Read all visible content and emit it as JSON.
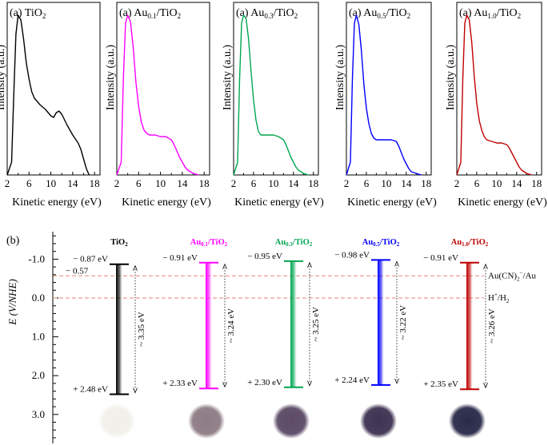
{
  "chart_data": [
    {
      "type": "line",
      "panel": "a",
      "panel_label": "(a)",
      "sample": "TiO",
      "sample_sub": "2",
      "xlabel": "Kinetic energy (eV)",
      "ylabel": "Intensity (a.u.)",
      "xlim": [
        2,
        19
      ],
      "ylim": [
        0,
        1.08
      ],
      "xticks": [
        "2",
        "6",
        "10",
        "14",
        "18"
      ],
      "color": "#000000",
      "x": [
        2.0,
        2.8,
        3.2,
        3.6,
        4.0,
        4.5,
        5.0,
        5.5,
        6.0,
        6.5,
        7.0,
        8.0,
        9.0,
        10.0,
        10.5,
        11.0,
        11.5,
        12.0,
        13.0,
        14.0,
        15.0,
        15.5,
        16.0,
        16.5,
        17.0
      ],
      "values": [
        0.0,
        0.08,
        0.5,
        0.88,
        1.0,
        0.97,
        0.85,
        0.7,
        0.6,
        0.52,
        0.48,
        0.44,
        0.41,
        0.37,
        0.36,
        0.39,
        0.4,
        0.38,
        0.31,
        0.25,
        0.2,
        0.16,
        0.1,
        0.04,
        0.0
      ]
    },
    {
      "type": "line",
      "panel": "a",
      "panel_label": "(a)",
      "sample": "Au",
      "sample_sub": "0.1",
      "sample_suffix": "/TiO",
      "sample_suffix_sub": "2",
      "xlabel": "Kinetic energy (eV)",
      "ylabel": "Intensity (a.u.)",
      "xlim": [
        2,
        19
      ],
      "ylim": [
        0,
        1.08
      ],
      "xticks": [
        "2",
        "6",
        "10",
        "14",
        "18"
      ],
      "color": "#ff00ff",
      "x": [
        2.0,
        2.8,
        3.2,
        3.6,
        4.0,
        4.5,
        5.0,
        5.5,
        6.0,
        6.5,
        7.0,
        7.5,
        8.0,
        9.0,
        10.0,
        11.0,
        12.0,
        12.5,
        13.0,
        13.5,
        14.0,
        14.5,
        15.0,
        16.0,
        17.0
      ],
      "values": [
        0.0,
        0.08,
        0.6,
        0.95,
        1.0,
        0.96,
        0.8,
        0.58,
        0.43,
        0.33,
        0.28,
        0.26,
        0.25,
        0.25,
        0.24,
        0.24,
        0.22,
        0.19,
        0.15,
        0.11,
        0.08,
        0.05,
        0.03,
        0.01,
        0.0
      ]
    },
    {
      "type": "line",
      "panel": "a",
      "panel_label": "(a)",
      "sample": "Au",
      "sample_sub": "0.3",
      "sample_suffix": "/TiO",
      "sample_suffix_sub": "2",
      "xlabel": "Kinetic energy (eV)",
      "ylabel": "Intensity (a.u.)",
      "xlim": [
        2,
        19
      ],
      "ylim": [
        0,
        1.08
      ],
      "xticks": [
        "2",
        "6",
        "10",
        "14",
        "18"
      ],
      "color": "#00a651",
      "x": [
        2.0,
        2.8,
        3.2,
        3.6,
        4.0,
        4.5,
        5.0,
        5.5,
        6.0,
        6.5,
        7.0,
        7.5,
        8.0,
        9.0,
        10.0,
        11.0,
        12.0,
        12.5,
        13.0,
        13.5,
        14.0,
        14.5,
        15.0,
        16.0,
        17.0
      ],
      "values": [
        0.0,
        0.08,
        0.6,
        0.95,
        1.0,
        0.98,
        0.85,
        0.65,
        0.47,
        0.34,
        0.27,
        0.25,
        0.25,
        0.25,
        0.25,
        0.24,
        0.22,
        0.19,
        0.15,
        0.11,
        0.08,
        0.05,
        0.03,
        0.01,
        0.0
      ]
    },
    {
      "type": "line",
      "panel": "a",
      "panel_label": "(a)",
      "sample": "Au",
      "sample_sub": "0.5",
      "sample_suffix": "/TiO",
      "sample_suffix_sub": "2",
      "xlabel": "Kinetic energy (eV)",
      "ylabel": "Intensity (a.u.)",
      "xlim": [
        2,
        19
      ],
      "ylim": [
        0,
        1.08
      ],
      "xticks": [
        "2",
        "6",
        "10",
        "14",
        "18"
      ],
      "color": "#0000ff",
      "x": [
        2.0,
        2.8,
        3.2,
        3.6,
        4.0,
        4.5,
        5.0,
        5.5,
        6.0,
        6.5,
        7.0,
        7.5,
        8.0,
        9.0,
        10.0,
        11.0,
        12.0,
        12.5,
        13.0,
        13.5,
        14.0,
        14.5,
        15.0,
        16.0,
        17.0
      ],
      "values": [
        0.0,
        0.08,
        0.6,
        0.95,
        1.0,
        0.94,
        0.78,
        0.57,
        0.42,
        0.32,
        0.26,
        0.23,
        0.22,
        0.22,
        0.22,
        0.22,
        0.21,
        0.18,
        0.14,
        0.1,
        0.07,
        0.04,
        0.02,
        0.01,
        0.0
      ]
    },
    {
      "type": "line",
      "panel": "a",
      "panel_label": "(a)",
      "sample": "Au",
      "sample_sub": "1.0",
      "sample_suffix": "/TiO",
      "sample_suffix_sub": "2",
      "xlabel": "Kinetic energy (eV)",
      "ylabel": "Intensity (a.u.)",
      "xlim": [
        2,
        19
      ],
      "ylim": [
        0,
        1.08
      ],
      "xticks": [
        "2",
        "6",
        "10",
        "14",
        "18"
      ],
      "color": "#c00000",
      "x": [
        2.0,
        2.8,
        3.2,
        3.6,
        4.0,
        4.5,
        5.0,
        5.5,
        6.0,
        6.5,
        7.0,
        7.5,
        8.0,
        9.0,
        10.0,
        11.0,
        12.0,
        12.5,
        13.0,
        13.5,
        14.0,
        14.5,
        15.0,
        16.0,
        17.0
      ],
      "values": [
        0.0,
        0.08,
        0.6,
        0.95,
        1.0,
        0.97,
        0.83,
        0.62,
        0.45,
        0.34,
        0.28,
        0.24,
        0.22,
        0.21,
        0.2,
        0.2,
        0.19,
        0.17,
        0.14,
        0.11,
        0.08,
        0.05,
        0.03,
        0.01,
        0.0
      ]
    },
    {
      "type": "band-diagram",
      "panel": "b",
      "panel_label": "(b)",
      "ylabel": "E (V/NHE)",
      "ylim": [
        -1.45,
        3.6
      ],
      "ytick_values": [
        -1.0,
        0.0,
        1.0,
        2.0,
        3.0
      ],
      "yticks": [
        "-1.0",
        "0.0",
        "1.0",
        "2.0",
        "3.0"
      ],
      "reference_lines": [
        {
          "value": -0.57,
          "label": "Au(CN)",
          "label_sub": "2",
          "label_sup": "−",
          "label_suffix": "/Au",
          "value_label": "− 0.57",
          "color": "#e8837a"
        },
        {
          "value": 0.0,
          "label": "H",
          "label_sup": "+",
          "label_suffix": "/H",
          "label_suffix_sub": "2",
          "color": "#e8837a"
        }
      ],
      "bands": [
        {
          "name": "TiO",
          "name_sub": "2",
          "cb": -0.87,
          "vb": 2.48,
          "cb_label": "− 0.87 eV",
          "vb_label": "+ 2.48 eV",
          "gap_label": "~ 3.35 eV",
          "color": "#000000",
          "powder_color": "#f2f0ea"
        },
        {
          "name": "Au",
          "name_sub": "0.1",
          "name_suffix": "/TiO",
          "name_suffix_sub": "2",
          "cb": -0.91,
          "vb": 2.33,
          "cb_label": "− 0.91 eV",
          "vb_label": "+ 2.33 eV",
          "gap_label": "~ 3.24 eV",
          "color": "#ff00ff",
          "powder_color": "#8e7c84"
        },
        {
          "name": "Au",
          "name_sub": "0.3",
          "name_suffix": "/TiO",
          "name_suffix_sub": "2",
          "cb": -0.95,
          "vb": 2.3,
          "cb_label": "− 0.95 eV",
          "vb_label": "+ 2.30 eV",
          "gap_label": "~ 3.25 eV",
          "color": "#00a651",
          "powder_color": "#5c4a66"
        },
        {
          "name": "Au",
          "name_sub": "0.5",
          "name_suffix": "/TiO",
          "name_suffix_sub": "2",
          "cb": -0.98,
          "vb": 2.24,
          "cb_label": "− 0.98 eV",
          "vb_label": "+ 2.24 eV",
          "gap_label": "~ 3.22 eV",
          "color": "#0000ff",
          "powder_color": "#3e3352"
        },
        {
          "name": "Au",
          "name_sub": "1.0",
          "name_suffix": "/TiO",
          "name_suffix_sub": "2",
          "cb": -0.91,
          "vb": 2.35,
          "cb_label": "− 0.91 eV",
          "vb_label": "+ 2.35 eV",
          "gap_label": "~ 3.26 eV",
          "color": "#c00000",
          "powder_color": "#2a2a4a"
        }
      ]
    }
  ]
}
